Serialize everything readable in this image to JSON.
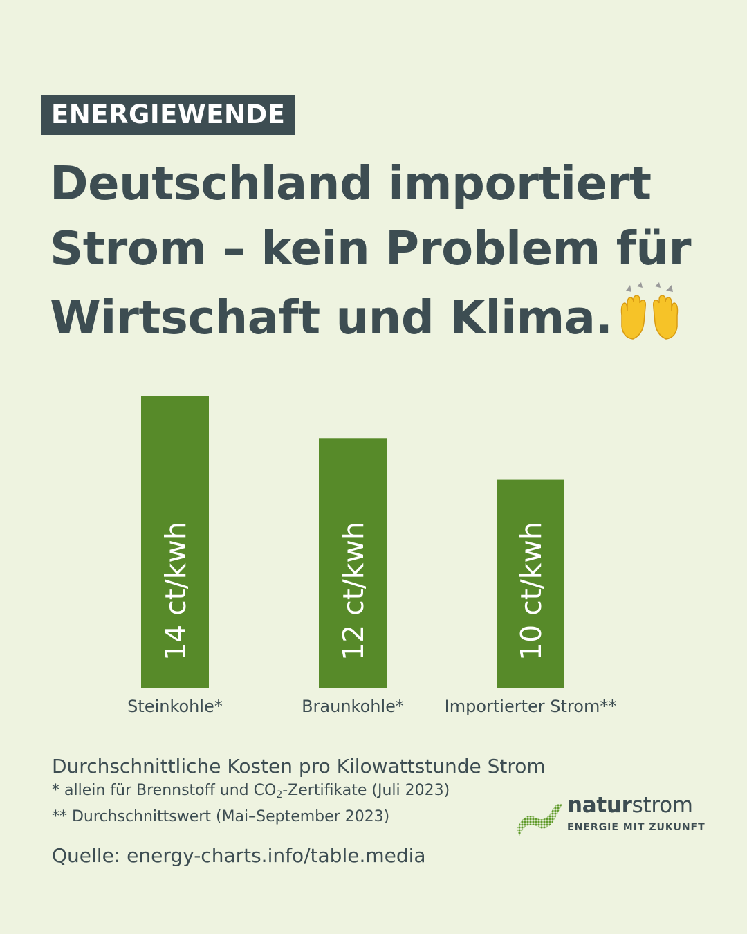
{
  "tag": "ENERGIEWENDE",
  "headline": {
    "line1": "Deutschland importiert",
    "line2": "Strom – kein Problem für",
    "line3": "Wirtschaft und Klima.",
    "emoji": "raising-hands"
  },
  "chart_data": {
    "type": "bar",
    "orientation": "vertical",
    "categories": [
      "Steinkohle*",
      "Braunkohle*",
      "Importierter Strom**"
    ],
    "values": [
      14,
      12,
      10
    ],
    "value_labels": [
      "14 ct/kwh",
      "12 ct/kwh",
      "10 ct/kwh"
    ],
    "unit": "ct/kwh",
    "title": "",
    "xlabel": "",
    "ylabel": "",
    "ylim": [
      0,
      14
    ],
    "grid": false,
    "legend": "none",
    "bar_color": "#578a29"
  },
  "caption": "Durchschnittliche Kosten pro Kilowattstunde Strom",
  "footnotes": {
    "note1_prefix": "* allein für Brennstoff und CO",
    "note1_sub": "2",
    "note1_suffix": "-Zertifikate (Juli 2023)",
    "note2": "** Durchschnittswert (Mai–September 2023)"
  },
  "source": "Quelle: energy-charts.info/table.media",
  "logo": {
    "name_bold": "natur",
    "name_regular": "strom",
    "tagline": "ENERGIE MIT ZUKUNFT",
    "mark": "green-swoosh"
  },
  "colors": {
    "background": "#eef3e0",
    "text": "#3d4d52",
    "bar": "#578a29",
    "tag_background": "#3d4d52",
    "tag_text": "#ffffff",
    "emoji": "#f6c328"
  }
}
